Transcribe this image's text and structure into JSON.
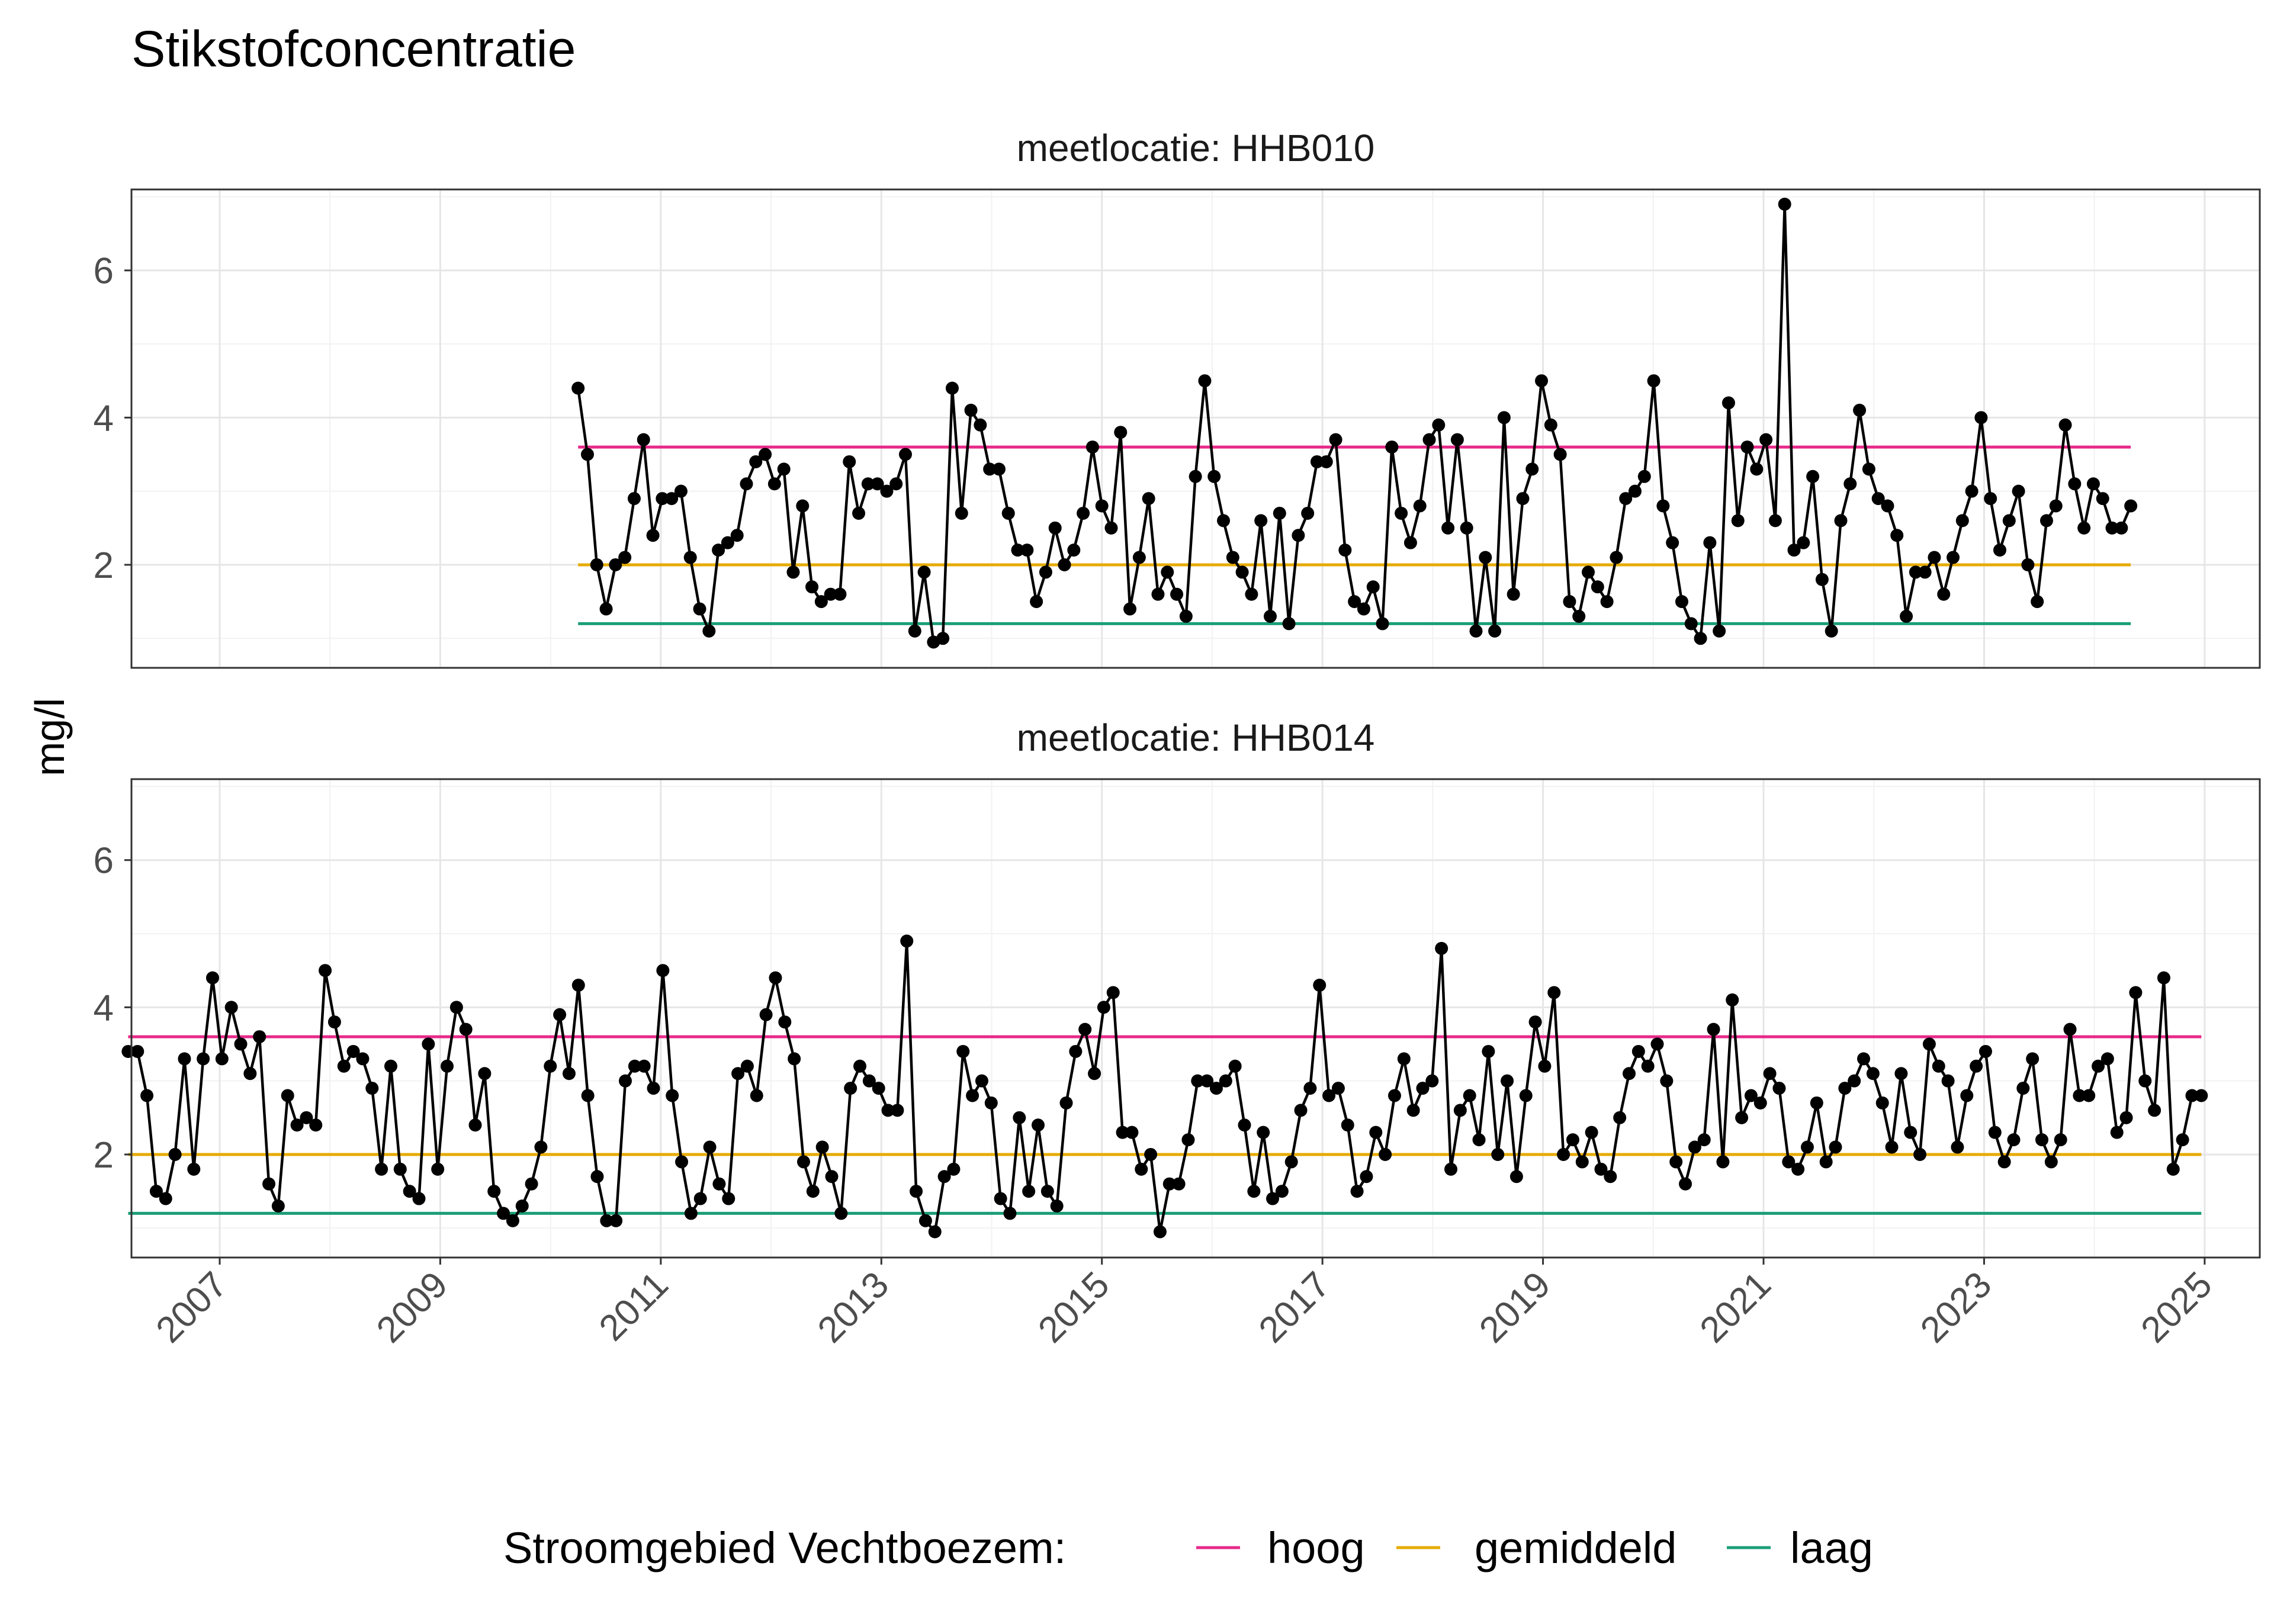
{
  "chart_data": {
    "type": "line",
    "title": "Stikstofconcentratie",
    "ylabel": "mg/l",
    "xlabel": "",
    "xlim": [
      2006.2,
      2025.5
    ],
    "ylim": [
      0.6,
      7.1
    ],
    "yticks": [
      2,
      4,
      6
    ],
    "xticks": [
      "2007",
      "2009",
      "2011",
      "2013",
      "2015",
      "2017",
      "2019",
      "2021",
      "2023",
      "2025"
    ],
    "grid": true,
    "legend": {
      "placement": "bottom",
      "title": "Stroomgebied Vechtboezem:",
      "items": [
        {
          "label": "hoog",
          "color": "#e7298a"
        },
        {
          "label": "gemiddeld",
          "color": "#e6ab02"
        },
        {
          "label": "laag",
          "color": "#1b9e77"
        }
      ]
    },
    "reference_lines": [
      {
        "name": "hoog",
        "value": 3.6,
        "color": "#e7298a"
      },
      {
        "name": "gemiddeld",
        "value": 2.0,
        "color": "#e6ab02"
      },
      {
        "name": "laag",
        "value": 1.2,
        "color": "#1b9e77"
      }
    ],
    "panels": [
      {
        "strip": "meetlocatie: HHB010",
        "x_range": [
          2010.25,
          2024.33
        ],
        "values": [
          4.4,
          3.5,
          2.0,
          1.4,
          2.0,
          2.1,
          2.9,
          3.7,
          2.4,
          2.9,
          2.9,
          3.0,
          2.1,
          1.4,
          1.1,
          2.2,
          2.3,
          2.4,
          3.1,
          3.4,
          3.5,
          3.1,
          3.3,
          1.9,
          2.8,
          1.7,
          1.5,
          1.6,
          1.6,
          3.4,
          2.7,
          3.1,
          3.1,
          3.0,
          3.1,
          3.5,
          1.1,
          1.9,
          0.95,
          1.0,
          4.4,
          2.7,
          4.1,
          3.9,
          3.3,
          3.3,
          2.7,
          2.2,
          2.2,
          1.5,
          1.9,
          2.5,
          2.0,
          2.2,
          2.7,
          3.6,
          2.8,
          2.5,
          3.8,
          1.4,
          2.1,
          2.9,
          1.6,
          1.9,
          1.6,
          1.3,
          3.2,
          4.5,
          3.2,
          2.6,
          2.1,
          1.9,
          1.6,
          2.6,
          1.3,
          2.7,
          1.2,
          2.4,
          2.7,
          3.4,
          3.4,
          3.7,
          2.2,
          1.5,
          1.4,
          1.7,
          1.2,
          3.6,
          2.7,
          2.3,
          2.8,
          3.7,
          3.9,
          2.5,
          3.7,
          2.5,
          1.1,
          2.1,
          1.1,
          4.0,
          1.6,
          2.9,
          3.3,
          4.5,
          3.9,
          3.5,
          1.5,
          1.3,
          1.9,
          1.7,
          1.5,
          2.1,
          2.9,
          3.0,
          3.2,
          4.5,
          2.8,
          2.3,
          1.5,
          1.2,
          1.0,
          2.3,
          1.1,
          4.2,
          2.6,
          3.6,
          3.3,
          3.7,
          2.6,
          6.9,
          2.2,
          2.3,
          3.2,
          1.8,
          1.1,
          2.6,
          3.1,
          4.1,
          3.3,
          2.9,
          2.8,
          2.4,
          1.3,
          1.9,
          1.9,
          2.1,
          1.6,
          2.1,
          2.6,
          3.0,
          4.0,
          2.9,
          2.2,
          2.6,
          3.0,
          2.0,
          1.5,
          2.6,
          2.8,
          3.9,
          3.1,
          2.5,
          3.1,
          2.9,
          2.5,
          2.5,
          2.8
        ]
      },
      {
        "strip": "meetlocatie: HHB014",
        "x_range": [
          2006.17,
          2024.97
        ],
        "values": [
          3.4,
          3.4,
          2.8,
          1.5,
          1.4,
          2.0,
          3.3,
          1.8,
          3.3,
          4.4,
          3.3,
          4.0,
          3.5,
          3.1,
          3.6,
          1.6,
          1.3,
          2.8,
          2.4,
          2.5,
          2.4,
          4.5,
          3.8,
          3.2,
          3.4,
          3.3,
          2.9,
          1.8,
          3.2,
          1.8,
          1.5,
          1.4,
          3.5,
          1.8,
          3.2,
          4.0,
          3.7,
          2.4,
          3.1,
          1.5,
          1.2,
          1.1,
          1.3,
          1.6,
          2.1,
          3.2,
          3.9,
          3.1,
          4.3,
          2.8,
          1.7,
          1.1,
          1.1,
          3.0,
          3.2,
          3.2,
          2.9,
          4.5,
          2.8,
          1.9,
          1.2,
          1.4,
          2.1,
          1.6,
          1.4,
          3.1,
          3.2,
          2.8,
          3.9,
          4.4,
          3.8,
          3.3,
          1.9,
          1.5,
          2.1,
          1.7,
          1.2,
          2.9,
          3.2,
          3.0,
          2.9,
          2.6,
          2.6,
          4.9,
          1.5,
          1.1,
          0.95,
          1.7,
          1.8,
          3.4,
          2.8,
          3.0,
          2.7,
          1.4,
          1.2,
          2.5,
          1.5,
          2.4,
          1.5,
          1.3,
          2.7,
          3.4,
          3.7,
          3.1,
          4.0,
          4.2,
          2.3,
          2.3,
          1.8,
          2.0,
          0.95,
          1.6,
          1.6,
          2.2,
          3.0,
          3.0,
          2.9,
          3.0,
          3.2,
          2.4,
          1.5,
          2.3,
          1.4,
          1.5,
          1.9,
          2.6,
          2.9,
          4.3,
          2.8,
          2.9,
          2.4,
          1.5,
          1.7,
          2.3,
          2.0,
          2.8,
          3.3,
          2.6,
          2.9,
          3.0,
          4.8,
          1.8,
          2.6,
          2.8,
          2.2,
          3.4,
          2.0,
          3.0,
          1.7,
          2.8,
          3.8,
          3.2,
          4.2,
          2.0,
          2.2,
          1.9,
          2.3,
          1.8,
          1.7,
          2.5,
          3.1,
          3.4,
          3.2,
          3.5,
          3.0,
          1.9,
          1.6,
          2.1,
          2.2,
          3.7,
          1.9,
          4.1,
          2.5,
          2.8,
          2.7,
          3.1,
          2.9,
          1.9,
          1.8,
          2.1,
          2.7,
          1.9,
          2.1,
          2.9,
          3.0,
          3.3,
          3.1,
          2.7,
          2.1,
          3.1,
          2.3,
          2.0,
          3.5,
          3.2,
          3.0,
          2.1,
          2.8,
          3.2,
          3.4,
          2.3,
          1.9,
          2.2,
          2.9,
          3.3,
          2.2,
          1.9,
          2.2,
          3.7,
          2.8,
          2.8,
          3.2,
          3.3,
          2.3,
          2.5,
          4.2,
          3.0,
          2.6,
          4.4,
          1.8,
          2.2,
          2.8,
          2.8
        ]
      }
    ]
  }
}
